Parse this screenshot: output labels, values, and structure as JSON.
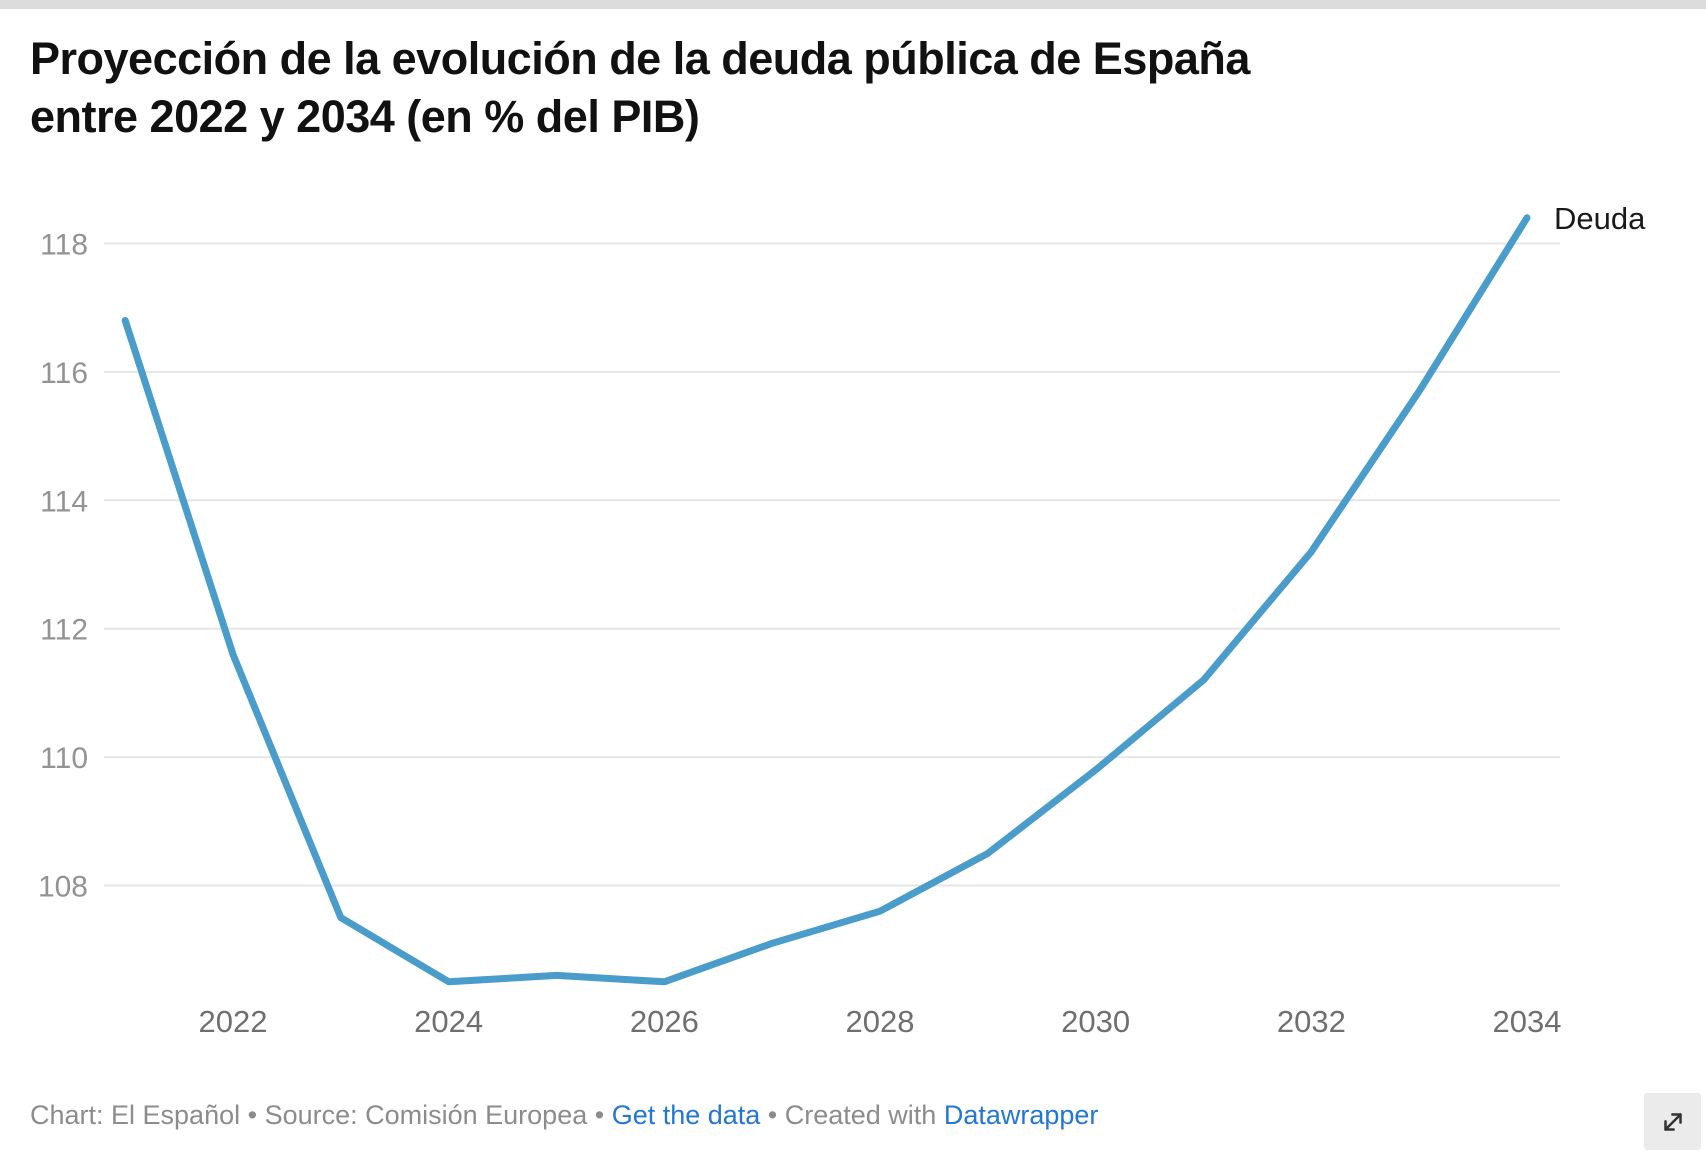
{
  "title": {
    "text": "Proyección de la evolución de la deuda pública de España entre 2022 y 2034 (en % del PIB)",
    "lines": [
      "Proyección de la evolución de la deuda pública de España",
      "entre 2022 y 2034 (en % del PIB)"
    ]
  },
  "chart_data": {
    "type": "line",
    "title": "Proyección de la evolución de la deuda pública de España entre 2022 y 2034 (en % del PIB)",
    "x": [
      2021,
      2022,
      2023,
      2024,
      2025,
      2026,
      2027,
      2028,
      2029,
      2030,
      2031,
      2032,
      2033,
      2034
    ],
    "series": [
      {
        "name": "Deuda",
        "values": [
          116.8,
          111.6,
          107.5,
          106.5,
          106.6,
          106.5,
          107.1,
          107.6,
          108.5,
          109.8,
          111.2,
          113.2,
          115.7,
          118.4
        ]
      }
    ],
    "x_ticks": [
      2022,
      2024,
      2026,
      2028,
      2030,
      2032,
      2034
    ],
    "y_ticks": [
      108,
      110,
      112,
      114,
      116,
      118
    ],
    "ylim": [
      106.2,
      118.7
    ],
    "xlabel": "",
    "ylabel": "",
    "grid": "horizontal",
    "legend_position": "line-end-label",
    "line_color": "#4a9cca"
  },
  "footer": {
    "part1": "Chart: El Español • Source: Comisión Europea • ",
    "get_data_label": "Get the data",
    "part2": " • Created with ",
    "datawrapper_label": "Datawrapper"
  },
  "colors": {
    "line": "#4a9cca",
    "link": "#2277d4",
    "grid": "#e6e6e6",
    "y_tick_label": "#939393",
    "x_tick_label": "#6f6f6f",
    "title": "#111111",
    "footer_text": "#8c8c8c",
    "top_border": "#dcdcdc",
    "expand_background": "#ebebeb",
    "expand_icon": "#333333"
  },
  "icons": {
    "expand": "expand-diagonal-arrow-icon"
  }
}
